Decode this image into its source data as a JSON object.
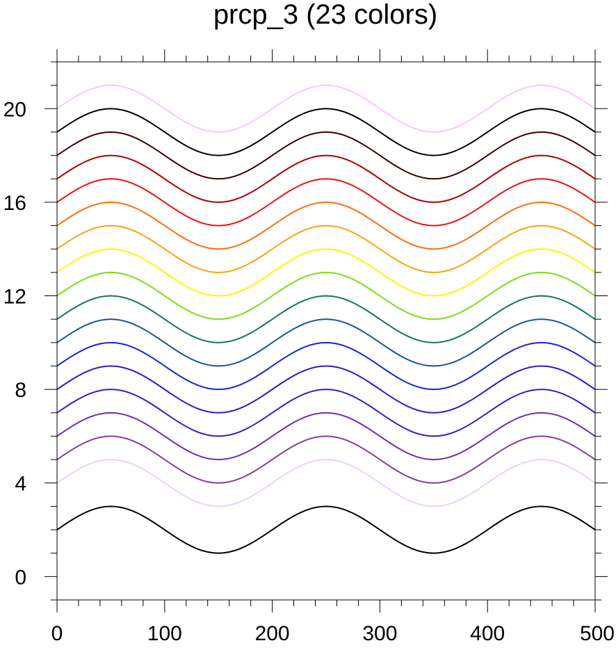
{
  "chart_data": {
    "type": "line",
    "title": "prcp_3 (23 colors)",
    "xlabel": "",
    "ylabel": "",
    "xlim": [
      0,
      500
    ],
    "ylim": [
      -1,
      22
    ],
    "x_ticks": [
      0,
      100,
      200,
      300,
      400,
      500
    ],
    "y_ticks": [
      0,
      4,
      8,
      12,
      16,
      20
    ],
    "x_minor_step": 20,
    "y_minor_step": 1,
    "grid": false,
    "legend": "none",
    "wave": {
      "formula": "y = offset + sin(2*pi*x/200)",
      "period": 200,
      "amplitude": 1,
      "x_step": 5
    },
    "series": [
      {
        "offset": 2,
        "color": "#000000"
      },
      {
        "offset": 4,
        "color": "#EBD1FF"
      },
      {
        "offset": 5,
        "color": "#7F3FA0"
      },
      {
        "offset": 6,
        "color": "#6A2ABD"
      },
      {
        "offset": 7,
        "color": "#3A1AC6"
      },
      {
        "offset": 8,
        "color": "#2A1AD6"
      },
      {
        "offset": 9,
        "color": "#1426D6"
      },
      {
        "offset": 10,
        "color": "#1651A6"
      },
      {
        "offset": 11,
        "color": "#137261"
      },
      {
        "offset": 12,
        "color": "#7FDC1A"
      },
      {
        "offset": 13,
        "color": "#FFF600"
      },
      {
        "offset": 14,
        "color": "#FFA10B"
      },
      {
        "offset": 15,
        "color": "#FF6C0B"
      },
      {
        "offset": 16,
        "color": "#F10F0F"
      },
      {
        "offset": 17,
        "color": "#AF0000"
      },
      {
        "offset": 18,
        "color": "#3C0000"
      },
      {
        "offset": 19,
        "color": "#000000"
      },
      {
        "offset": 20,
        "color": "#F7C7FF"
      }
    ]
  }
}
